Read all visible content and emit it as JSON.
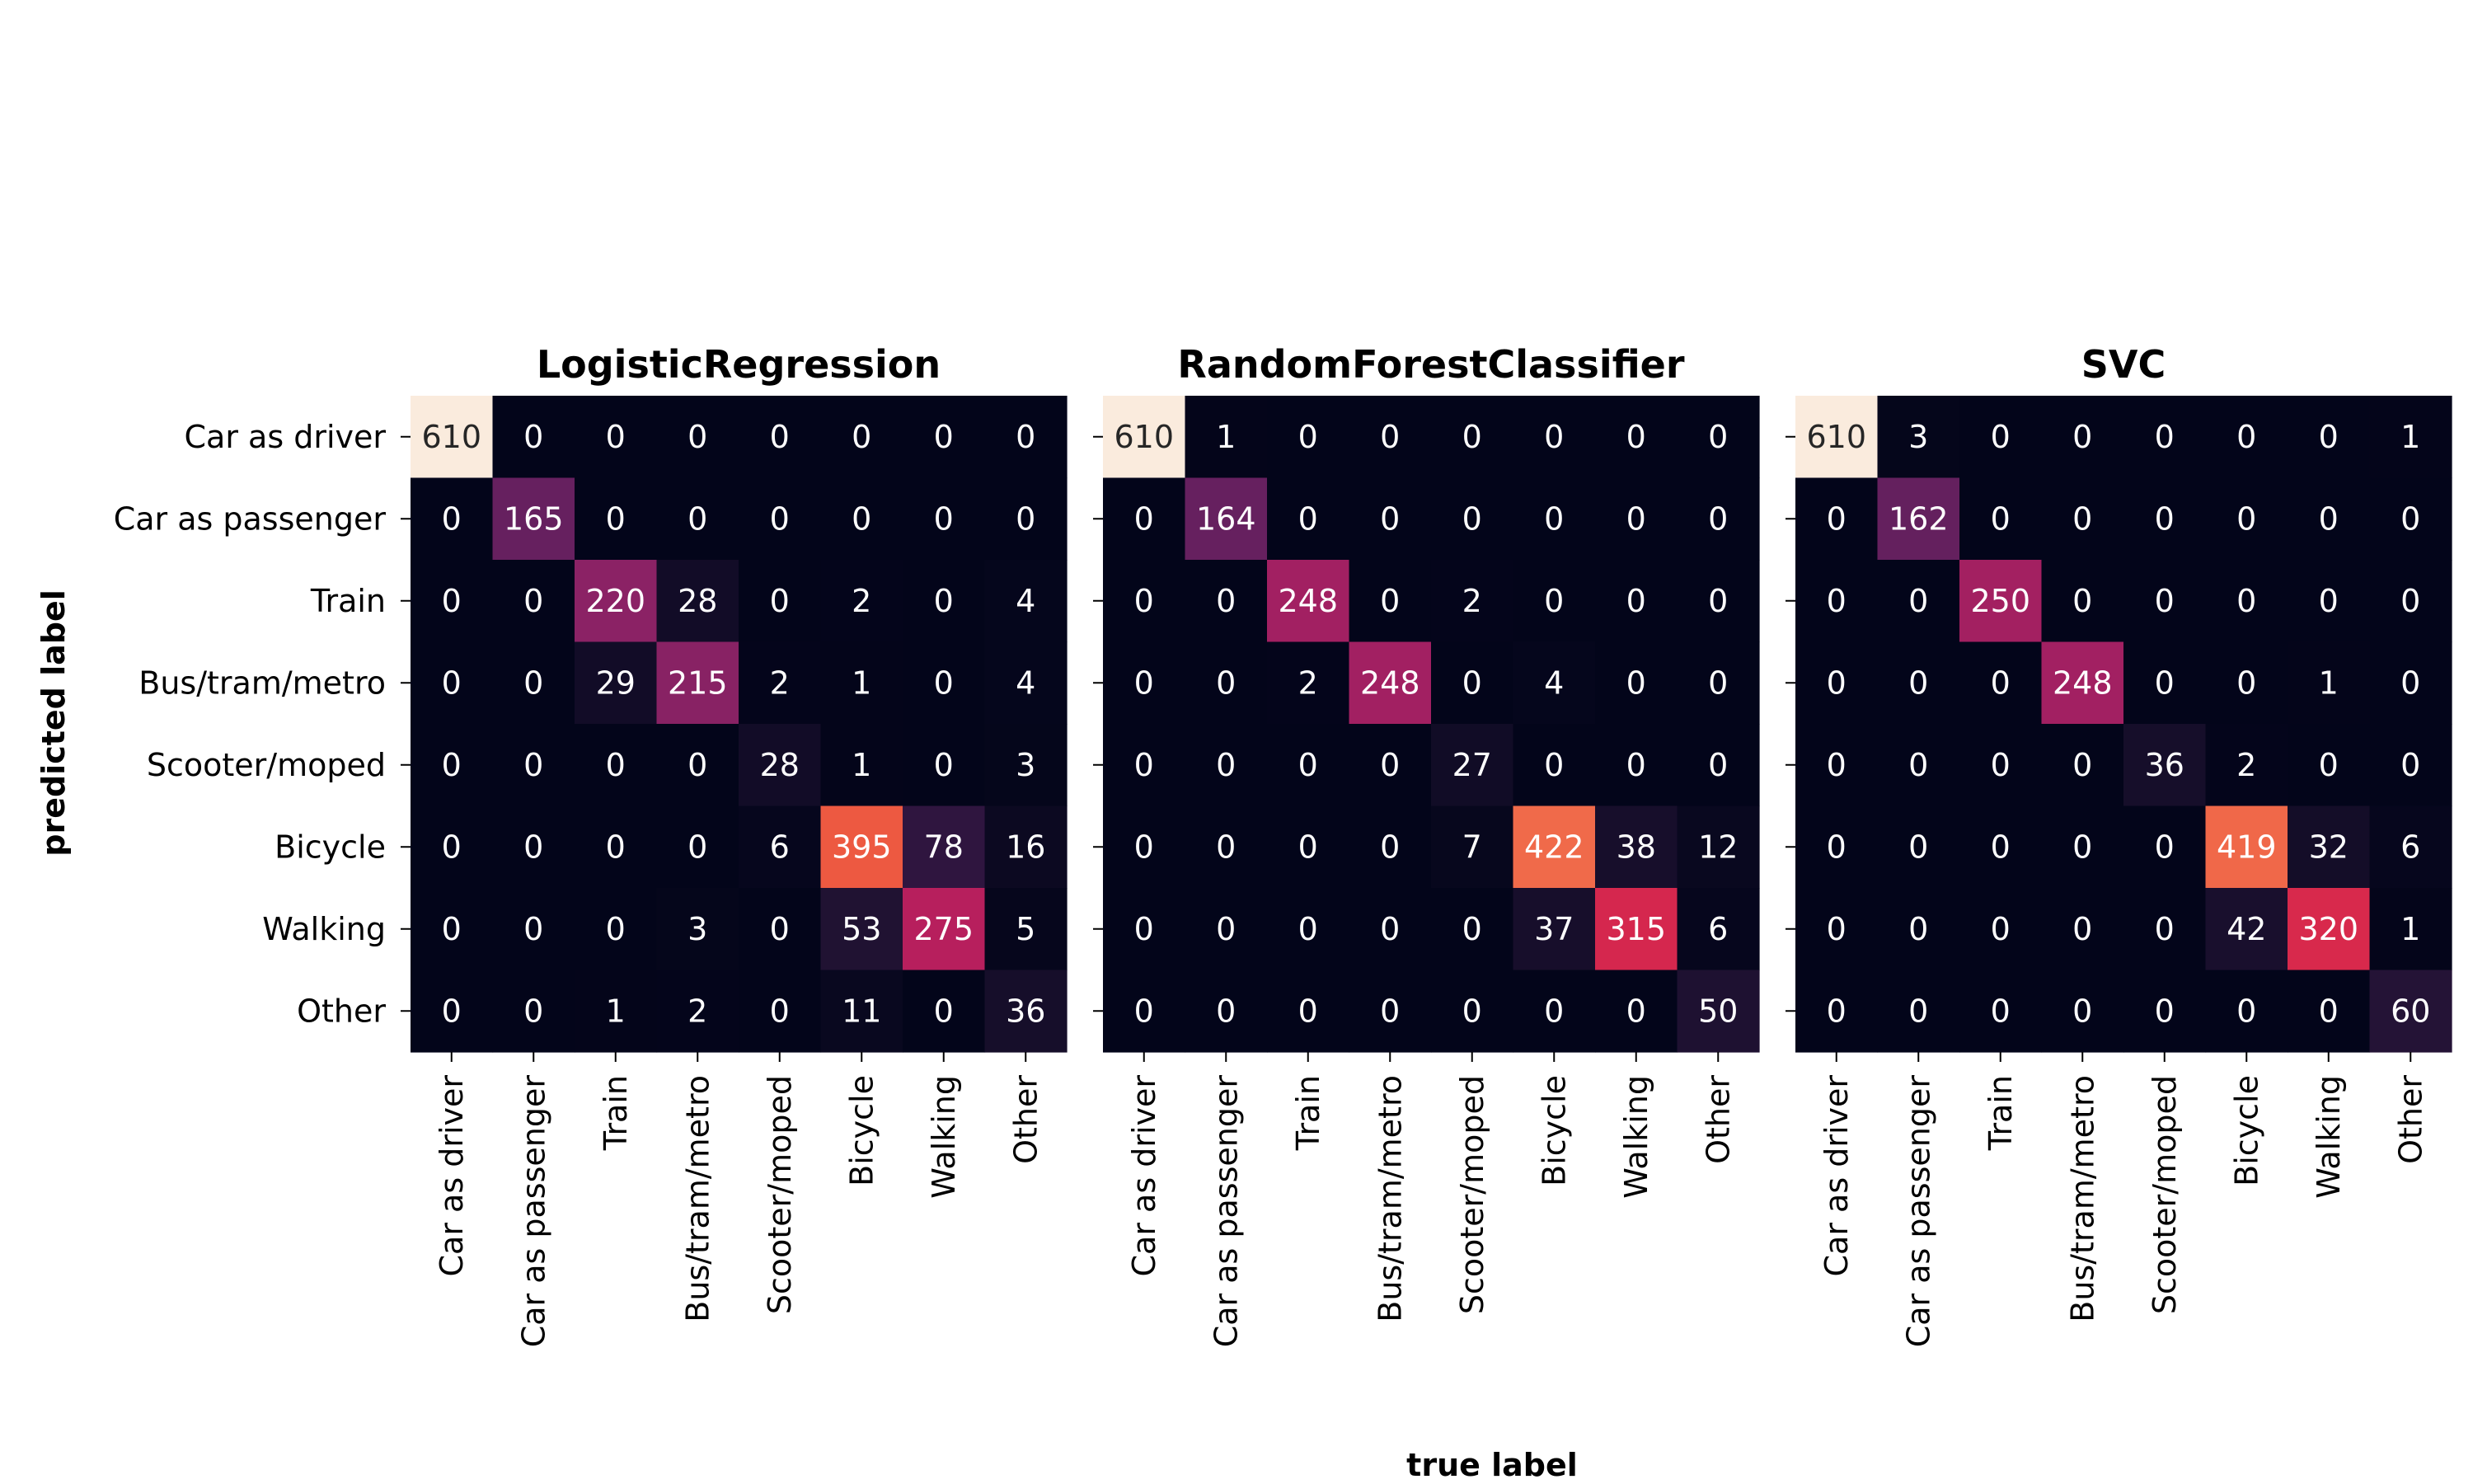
{
  "chart_data": {
    "type": "heatmap",
    "xlabel": "true label",
    "ylabel": "predicted label",
    "categories": [
      "Car as driver",
      "Car as passenger",
      "Train",
      "Bus/tram/metro",
      "Scooter/moped",
      "Bicycle",
      "Walking",
      "Other"
    ],
    "color_scale": {
      "vmin": 0,
      "vmax": 610,
      "colormap": "rocket",
      "colorbar": false
    },
    "panels": [
      {
        "title": "LogisticRegression",
        "matrix": [
          [
            610,
            0,
            0,
            0,
            0,
            0,
            0,
            0
          ],
          [
            0,
            165,
            0,
            0,
            0,
            0,
            0,
            0
          ],
          [
            0,
            0,
            220,
            28,
            0,
            2,
            0,
            4
          ],
          [
            0,
            0,
            29,
            215,
            2,
            1,
            0,
            4
          ],
          [
            0,
            0,
            0,
            0,
            28,
            1,
            0,
            3
          ],
          [
            0,
            0,
            0,
            0,
            6,
            395,
            78,
            16
          ],
          [
            0,
            0,
            0,
            3,
            0,
            53,
            275,
            5
          ],
          [
            0,
            0,
            1,
            2,
            0,
            11,
            0,
            36
          ]
        ]
      },
      {
        "title": "RandomForestClassifier",
        "matrix": [
          [
            610,
            1,
            0,
            0,
            0,
            0,
            0,
            0
          ],
          [
            0,
            164,
            0,
            0,
            0,
            0,
            0,
            0
          ],
          [
            0,
            0,
            248,
            0,
            2,
            0,
            0,
            0
          ],
          [
            0,
            0,
            2,
            248,
            0,
            4,
            0,
            0
          ],
          [
            0,
            0,
            0,
            0,
            27,
            0,
            0,
            0
          ],
          [
            0,
            0,
            0,
            0,
            7,
            422,
            38,
            12
          ],
          [
            0,
            0,
            0,
            0,
            0,
            37,
            315,
            6
          ],
          [
            0,
            0,
            0,
            0,
            0,
            0,
            0,
            50
          ]
        ]
      },
      {
        "title": "SVC",
        "matrix": [
          [
            610,
            3,
            0,
            0,
            0,
            0,
            0,
            1
          ],
          [
            0,
            162,
            0,
            0,
            0,
            0,
            0,
            0
          ],
          [
            0,
            0,
            250,
            0,
            0,
            0,
            0,
            0
          ],
          [
            0,
            0,
            0,
            248,
            0,
            0,
            1,
            0
          ],
          [
            0,
            0,
            0,
            0,
            36,
            2,
            0,
            0
          ],
          [
            0,
            0,
            0,
            0,
            0,
            419,
            32,
            6
          ],
          [
            0,
            0,
            0,
            0,
            0,
            42,
            320,
            1
          ],
          [
            0,
            0,
            0,
            0,
            0,
            0,
            0,
            60
          ]
        ]
      }
    ]
  }
}
